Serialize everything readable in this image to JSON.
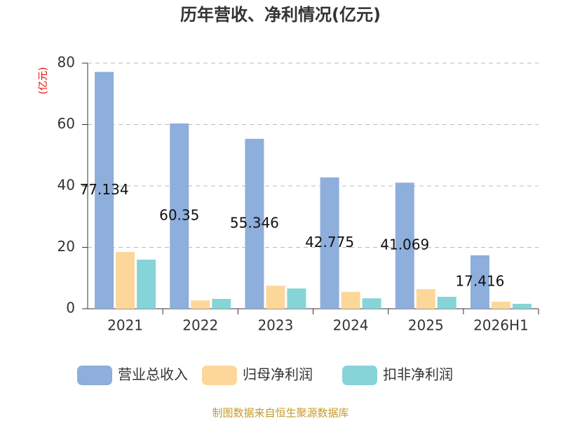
{
  "chart_data": {
    "type": "bar",
    "title": "历年营收、净利情况(亿元)",
    "y_label": "(亿元)",
    "categories": [
      "2021",
      "2022",
      "2023",
      "2024",
      "2025",
      "2026H1"
    ],
    "series": [
      {
        "name": "营业总收入",
        "color": "#8eaedb",
        "values": [
          77.134,
          60.35,
          55.346,
          42.775,
          41.069,
          17.416
        ],
        "show_labels": true
      },
      {
        "name": "归母净利润",
        "color": "#fdd79a",
        "values": [
          18.5,
          2.7,
          7.5,
          5.5,
          6.4,
          2.3
        ]
      },
      {
        "name": "扣非净利润",
        "color": "#86d4d8",
        "values": [
          16.0,
          3.2,
          6.6,
          3.4,
          3.9,
          1.6
        ]
      }
    ],
    "ylim": [
      0,
      80
    ],
    "yticks": [
      0,
      20,
      40,
      60,
      80
    ],
    "grid": true,
    "legend": "bottom",
    "source": "制图数据来自恒生聚源数据库"
  }
}
